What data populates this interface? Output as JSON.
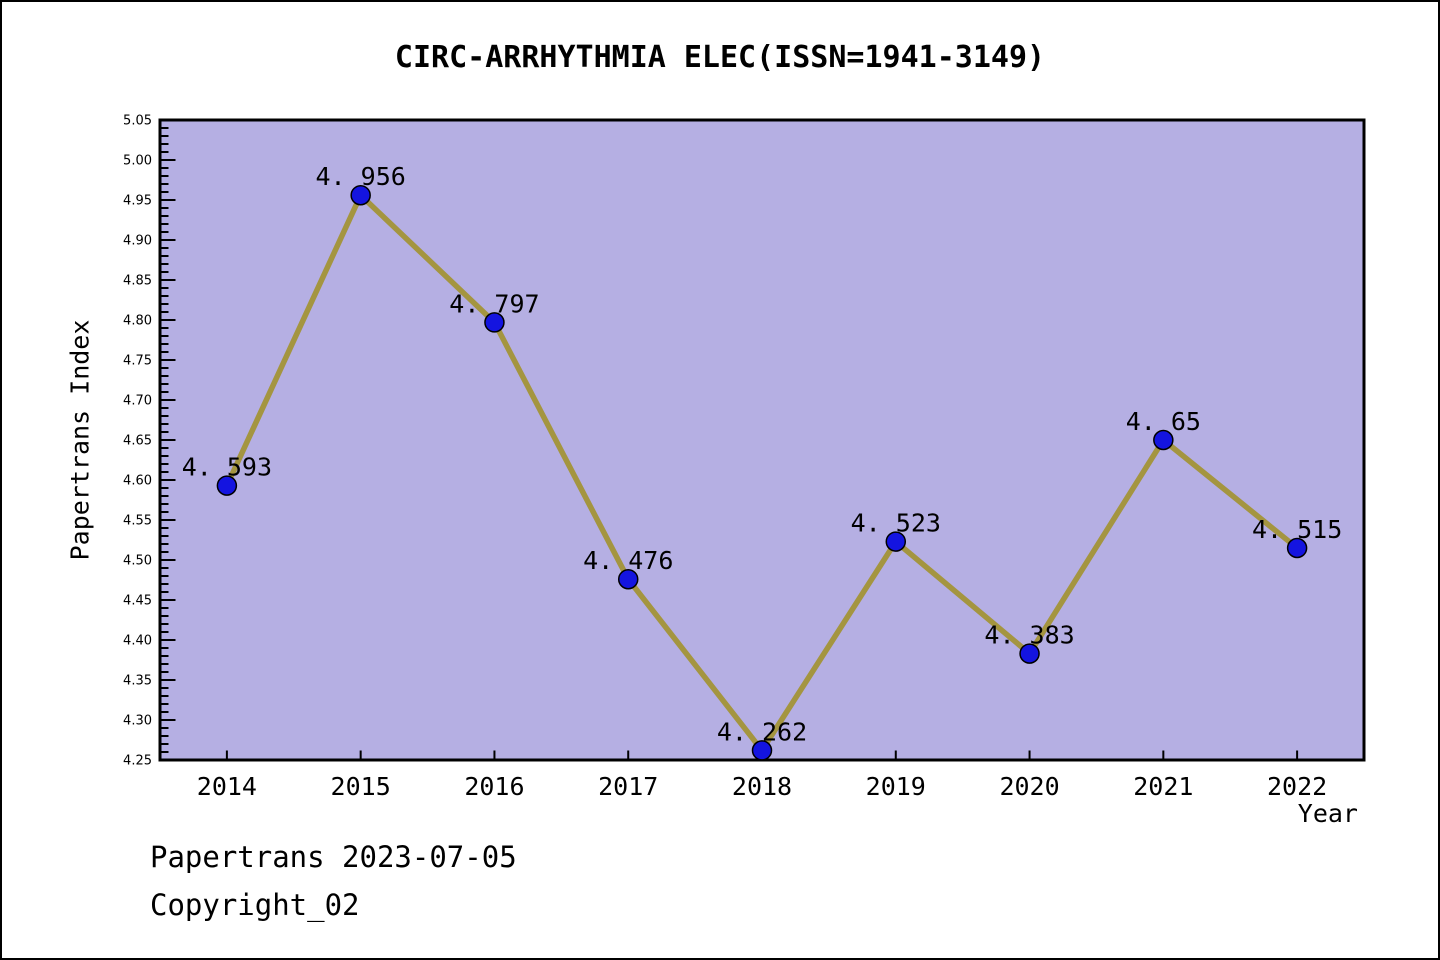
{
  "title": "CIRC-ARRHYTHMIA ELEC(ISSN=1941-3149)",
  "footer": {
    "line1": "Papertrans 2023-07-05",
    "line2": "Copyright_02"
  },
  "chart_data": {
    "type": "line",
    "title": "CIRC-ARRHYTHMIA ELEC(ISSN=1941-3149)",
    "xlabel": "Year",
    "ylabel": "Papertrans Index",
    "categories": [
      "2014",
      "2015",
      "2016",
      "2017",
      "2018",
      "2019",
      "2020",
      "2021",
      "2022"
    ],
    "values": [
      4.593,
      4.956,
      4.797,
      4.476,
      4.262,
      4.523,
      4.383,
      4.65,
      4.515
    ],
    "point_labels": [
      "4. 593",
      "4. 956",
      "4. 797",
      "4. 476",
      "4. 262",
      "4. 523",
      "4. 383",
      "4. 65",
      "4. 515"
    ],
    "ylim": [
      4.25,
      5.05
    ],
    "ytick_major_step": 0.05,
    "ytick_minor_step": 0.01,
    "ytick_decimals": 2,
    "grid": false,
    "legend_position": "none",
    "colors": {
      "figure_bg": "#ffffff",
      "plot_bg": "#b5afe3",
      "line": "#a49540",
      "marker_fill": "#1414e0",
      "marker_edge": "#000000",
      "spine": "#000000",
      "text": "#000000"
    }
  }
}
